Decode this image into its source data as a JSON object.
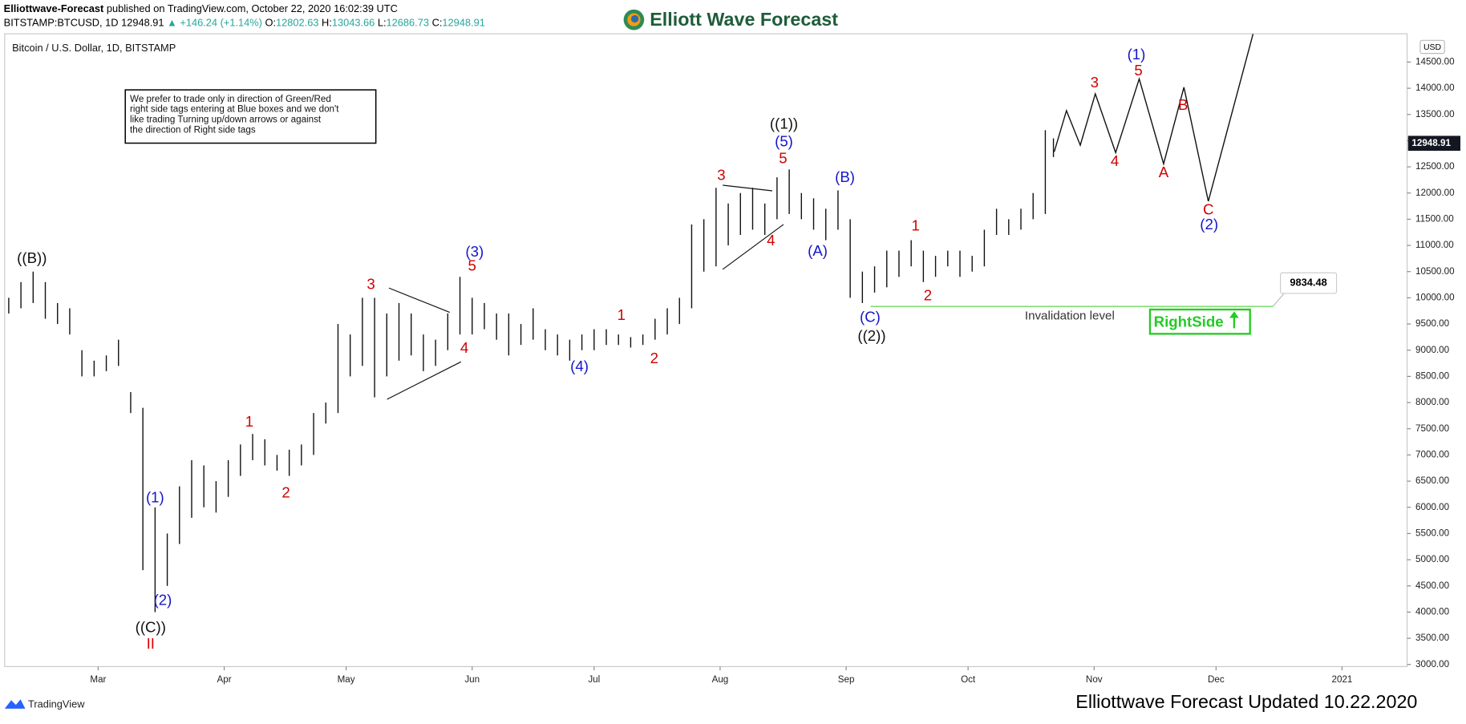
{
  "chart_data": {
    "type": "ohlc",
    "header": {
      "publisher": "Elliottwave-Forecast",
      "published": "published on TradingView.com, October 22, 2020 16:02:39 UTC",
      "symbol": "BITSTAMP:BTCUSD, 1D",
      "change": "▲ +146.24 (+1.14%)",
      "ohlc_labels": [
        "O:",
        "H:",
        "L:",
        "C:"
      ],
      "ohlc": [
        12802.63,
        13043.66,
        12686.73,
        12948.91
      ]
    },
    "logo": "Elliott Wave Forecast",
    "title": "Bitcoin / U.S. Dollar, 1D, BITSTAMP",
    "currency": "USD",
    "note": [
      "We prefer to trade only in direction of Green/Red",
      "right side tags entering at Blue boxes and we don't",
      "like trading Turning up/down arrows or against",
      "the direction of Right side tags"
    ],
    "last_price": 12948.91,
    "x": [
      -22,
      -19,
      -16,
      -13,
      -10,
      -7,
      -4,
      -1,
      2,
      5,
      8,
      11,
      14,
      17,
      20,
      23,
      26,
      29,
      32,
      35,
      38,
      41,
      44,
      47,
      50,
      53,
      56,
      59,
      62,
      65,
      68,
      71,
      74,
      77,
      80,
      83,
      86,
      89,
      92,
      95,
      98,
      101,
      104,
      107,
      110,
      113,
      116,
      119,
      122,
      125,
      128,
      131,
      134,
      137,
      140,
      143,
      146,
      149,
      152,
      155,
      158,
      161,
      164,
      167,
      170,
      173,
      176,
      179,
      182,
      185,
      188,
      191,
      194,
      197,
      200,
      203,
      206,
      209,
      212,
      215,
      218,
      221,
      224,
      227,
      230,
      233,
      235
    ],
    "high": [
      10000,
      10300,
      10500,
      10300,
      9900,
      9800,
      9000,
      8800,
      8900,
      9200,
      8200,
      7900,
      6000,
      5500,
      6400,
      6900,
      6800,
      6500,
      6900,
      7200,
      7400,
      7300,
      7000,
      7100,
      7200,
      7800,
      8000,
      9500,
      9300,
      10000,
      10000,
      9700,
      9900,
      9700,
      9300,
      9200,
      9700,
      10400,
      10000,
      9900,
      9700,
      9700,
      9500,
      9800,
      9400,
      9300,
      9200,
      9300,
      9400,
      9400,
      9300,
      9250,
      9300,
      9600,
      9800,
      10000,
      11400,
      11500,
      12100,
      11800,
      12000,
      12100,
      11800,
      12300,
      12450,
      12000,
      11900,
      11700,
      12050,
      11500,
      10500,
      10600,
      10900,
      10900,
      11100,
      10900,
      10800,
      10900,
      10900,
      10800,
      11300,
      11700,
      11500,
      11700,
      12000,
      13200,
      13043.66
    ],
    "low": [
      9700,
      9800,
      9900,
      9600,
      9500,
      9300,
      8500,
      8500,
      8600,
      8700,
      7800,
      4800,
      4000,
      4500,
      5300,
      5800,
      6000,
      5900,
      6200,
      6600,
      6900,
      6800,
      6700,
      6600,
      6800,
      7000,
      7600,
      7800,
      8500,
      8700,
      8100,
      8500,
      8800,
      8900,
      8600,
      8700,
      9000,
      9300,
      9300,
      9400,
      9200,
      8900,
      9100,
      9200,
      9000,
      8900,
      8800,
      9000,
      9000,
      9100,
      9100,
      9050,
      9100,
      9200,
      9300,
      9500,
      9800,
      10500,
      10600,
      11000,
      11200,
      11300,
      11200,
      11500,
      11600,
      11500,
      11300,
      11100,
      11300,
      10000,
      9900,
      10100,
      10200,
      10400,
      10600,
      10300,
      10400,
      10600,
      10400,
      10500,
      10600,
      11200,
      11200,
      11300,
      11500,
      11600,
      12686.73
    ],
    "projection": {
      "x": [
        235.2,
        238.2,
        241.6,
        245.3,
        250.3,
        256.1,
        262.1,
        267.1,
        273.1,
        284.1
      ],
      "y": [
        12788,
        13573,
        12913,
        13894,
        12771,
        14179,
        12557,
        14019,
        11843,
        15035
      ]
    },
    "invalidation": {
      "value": 9834.48,
      "x": [
        190,
        289
      ]
    },
    "rightside": "RightSide",
    "annotations": [
      {
        "text": "((B))",
        "x": -16.3,
        "y": 10738,
        "color": "#111111"
      },
      {
        "text": "((C))",
        "x": 12.9,
        "y": 3695,
        "color": "#111111"
      },
      {
        "text": "II",
        "x": 12.9,
        "y": 3375,
        "color": "#e00000"
      },
      {
        "text": "(1)",
        "x": 14.0,
        "y": 6173,
        "color": "#1515c8"
      },
      {
        "text": "(2)",
        "x": 15.9,
        "y": 4212,
        "color": "#1515c8"
      },
      {
        "text": "1",
        "x": 37.2,
        "y": 7617,
        "color": "#d00000"
      },
      {
        "text": "2",
        "x": 46.2,
        "y": 6262,
        "color": "#d00000"
      },
      {
        "text": "3",
        "x": 67.1,
        "y": 10239,
        "color": "#d00000"
      },
      {
        "text": "4",
        "x": 90.1,
        "y": 9026,
        "color": "#d00000"
      },
      {
        "text": "5",
        "x": 92.0,
        "y": 10595,
        "color": "#d00000"
      },
      {
        "text": "(3)",
        "x": 92.6,
        "y": 10862,
        "color": "#1515c8"
      },
      {
        "text": "(4)",
        "x": 118.4,
        "y": 8670,
        "color": "#1515c8"
      },
      {
        "text": "1",
        "x": 128.7,
        "y": 9650,
        "color": "#d00000"
      },
      {
        "text": "2",
        "x": 136.8,
        "y": 8830,
        "color": "#d00000"
      },
      {
        "text": "3",
        "x": 153.3,
        "y": 12325,
        "color": "#d00000"
      },
      {
        "text": "4",
        "x": 165.5,
        "y": 11077,
        "color": "#d00000"
      },
      {
        "text": "5",
        "x": 168.5,
        "y": 12646,
        "color": "#d00000"
      },
      {
        "text": "(5)",
        "x": 168.7,
        "y": 12967,
        "color": "#1515c8"
      },
      {
        "text": "((1))",
        "x": 168.7,
        "y": 13305,
        "color": "#111111"
      },
      {
        "text": "(B)",
        "x": 183.7,
        "y": 12289,
        "color": "#1515c8"
      },
      {
        "text": "(A)",
        "x": 177.0,
        "y": 10880,
        "color": "#1515c8"
      },
      {
        "text": "(C)",
        "x": 189.9,
        "y": 9615,
        "color": "#1515c8"
      },
      {
        "text": "((2))",
        "x": 190.3,
        "y": 9258,
        "color": "#111111"
      },
      {
        "text": "1",
        "x": 201.1,
        "y": 11362,
        "color": "#d00000"
      },
      {
        "text": "2",
        "x": 204.1,
        "y": 10025,
        "color": "#d00000"
      },
      {
        "text": "3",
        "x": 245.1,
        "y": 14090,
        "color": "#d00000"
      },
      {
        "text": "4",
        "x": 250.1,
        "y": 12592,
        "color": "#d00000"
      },
      {
        "text": "5",
        "x": 255.9,
        "y": 14322,
        "color": "#d00000"
      },
      {
        "text": "(1)",
        "x": 255.4,
        "y": 14625,
        "color": "#1515c8"
      },
      {
        "text": "A",
        "x": 262.1,
        "y": 12378,
        "color": "#d00000"
      },
      {
        "text": "B",
        "x": 266.9,
        "y": 13662,
        "color": "#d00000"
      },
      {
        "text": "C",
        "x": 273.1,
        "y": 11665,
        "color": "#d00000"
      },
      {
        "text": "(2)",
        "x": 273.3,
        "y": 11380,
        "color": "#1515c8"
      },
      {
        "text": "Invalidation level",
        "x": 239.0,
        "y": 9650,
        "color": "#333333"
      }
    ],
    "xlim": [
      -23,
      322
    ],
    "xticks": [
      {
        "value": 0,
        "label": "Mar"
      },
      {
        "value": 31,
        "label": "Apr"
      },
      {
        "value": 61,
        "label": "May"
      },
      {
        "value": 92,
        "label": "Jun"
      },
      {
        "value": 122,
        "label": "Jul"
      },
      {
        "value": 153,
        "label": "Aug"
      },
      {
        "value": 184,
        "label": "Sep"
      },
      {
        "value": 214,
        "label": "Oct"
      },
      {
        "value": 245,
        "label": "Nov"
      },
      {
        "value": 275,
        "label": "Dec"
      },
      {
        "value": 306,
        "label": "2021"
      }
    ],
    "ylim": [
      2960,
      15040
    ],
    "yticks": [
      {
        "value": 3000,
        "label": "3000.00"
      },
      {
        "value": 3500,
        "label": "3500.00"
      },
      {
        "value": 4000,
        "label": "4000.00"
      },
      {
        "value": 4500,
        "label": "4500.00"
      },
      {
        "value": 5000,
        "label": "5000.00"
      },
      {
        "value": 5500,
        "label": "5500.00"
      },
      {
        "value": 6000,
        "label": "6000.00"
      },
      {
        "value": 6500,
        "label": "6500.00"
      },
      {
        "value": 7000,
        "label": "7000.00"
      },
      {
        "value": 7500,
        "label": "7500.00"
      },
      {
        "value": 8000,
        "label": "8000.00"
      },
      {
        "value": 8500,
        "label": "8500.00"
      },
      {
        "value": 9000,
        "label": "9000.00"
      },
      {
        "value": 9500,
        "label": "9500.00"
      },
      {
        "value": 10000,
        "label": "10000.00"
      },
      {
        "value": 10500,
        "label": "10500.00"
      },
      {
        "value": 11000,
        "label": "11000.00"
      },
      {
        "value": 11500,
        "label": "11500.00"
      },
      {
        "value": 12000,
        "label": "12000.00"
      },
      {
        "value": 12500,
        "label": "12500.00"
      },
      {
        "value": 13000,
        "label": "13000.00"
      },
      {
        "value": 13500,
        "label": "13500.00"
      },
      {
        "value": 14000,
        "label": "14000.00"
      },
      {
        "value": 14500,
        "label": "14500.00"
      }
    ],
    "footer_brand": "TradingView",
    "footer": "Elliottwave Forecast Updated 10.22.2020"
  }
}
